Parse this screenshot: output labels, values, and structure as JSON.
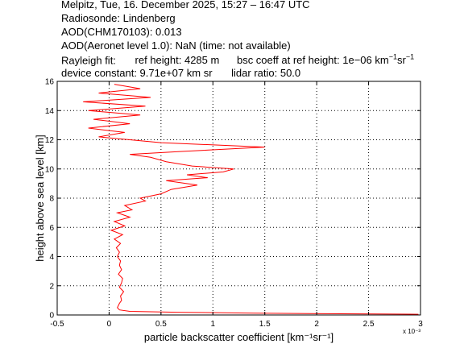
{
  "header": {
    "line1": "Melpitz, Tue, 16. December 2025, 15:27 – 16:47 UTC",
    "line2": "Radiosonde: Lindenberg",
    "line3": "AOD(CHM170103): 0.013",
    "line4": "AOD(Aeronet level 1.0): NaN   (time: not available)",
    "rayleigh_label": "Rayleigh fit:",
    "ref_height": "ref height: 4285 m",
    "bsc_coeff_prefix": "bsc coeff at ref height: 1e−06 km",
    "bsc_coeff_sup1": "−1",
    "bsc_coeff_mid": "sr",
    "bsc_coeff_sup2": "−1",
    "device_constant": "device constant: 9.71e+07 km sr",
    "lidar_ratio": "lidar ratio: 50.0"
  },
  "chart_data": {
    "type": "line",
    "title": "",
    "xlabel": "particle backscatter coefficient [km⁻¹sr⁻¹]",
    "ylabel": "height above sea level [km]",
    "x_multiplier_label": "x 10⁻³",
    "xlim": [
      -0.5,
      3
    ],
    "ylim": [
      0,
      16
    ],
    "xticks": [
      "-0.5",
      "0",
      "0.5",
      "1",
      "1.5",
      "2",
      "2.5",
      "3"
    ],
    "yticks": [
      "0",
      "2",
      "4",
      "6",
      "8",
      "10",
      "12",
      "14",
      "16"
    ],
    "grid": true,
    "line_color": "#ff0000",
    "series": [
      {
        "name": "",
        "points": [
          [
            2.98,
            0.05
          ],
          [
            1.4,
            0.12
          ],
          [
            0.7,
            0.18
          ],
          [
            0.2,
            0.25
          ],
          [
            0.1,
            0.35
          ],
          [
            0.08,
            0.5
          ],
          [
            0.1,
            0.8
          ],
          [
            0.12,
            1.0
          ],
          [
            0.11,
            1.3
          ],
          [
            0.14,
            1.6
          ],
          [
            0.1,
            1.9
          ],
          [
            0.12,
            2.2
          ],
          [
            0.13,
            2.5
          ],
          [
            0.09,
            2.8
          ],
          [
            0.12,
            3.1
          ],
          [
            0.1,
            3.4
          ],
          [
            0.11,
            3.7
          ],
          [
            0.08,
            4.0
          ],
          [
            0.1,
            4.3
          ],
          [
            0.07,
            4.6
          ],
          [
            0.11,
            4.9
          ],
          [
            0.05,
            5.2
          ],
          [
            0.13,
            5.5
          ],
          [
            0.02,
            5.8
          ],
          [
            0.15,
            6.1
          ],
          [
            0.05,
            6.4
          ],
          [
            0.2,
            6.7
          ],
          [
            0.08,
            7.0
          ],
          [
            0.22,
            7.2
          ],
          [
            0.15,
            7.5
          ],
          [
            0.35,
            7.8
          ],
          [
            0.3,
            8.0
          ],
          [
            0.5,
            8.3
          ],
          [
            0.6,
            8.6
          ],
          [
            0.85,
            8.9
          ],
          [
            0.55,
            9.2
          ],
          [
            0.95,
            9.4
          ],
          [
            0.75,
            9.6
          ],
          [
            1.1,
            9.8
          ],
          [
            1.2,
            10.0
          ],
          [
            0.8,
            10.2
          ],
          [
            0.55,
            10.5
          ],
          [
            0.4,
            10.8
          ],
          [
            0.2,
            11.0
          ],
          [
            0.7,
            11.2
          ],
          [
            1.5,
            11.5
          ],
          [
            0.5,
            11.8
          ],
          [
            0.2,
            12.0
          ],
          [
            -0.1,
            12.2
          ],
          [
            0.15,
            12.5
          ],
          [
            -0.2,
            12.8
          ],
          [
            0.2,
            13.1
          ],
          [
            -0.15,
            13.4
          ],
          [
            0.3,
            13.7
          ],
          [
            -0.2,
            14.0
          ],
          [
            0.35,
            14.3
          ],
          [
            -0.25,
            14.6
          ],
          [
            0.4,
            14.9
          ],
          [
            -0.1,
            15.2
          ],
          [
            0.3,
            15.5
          ],
          [
            0.05,
            15.8
          ]
        ]
      }
    ]
  }
}
